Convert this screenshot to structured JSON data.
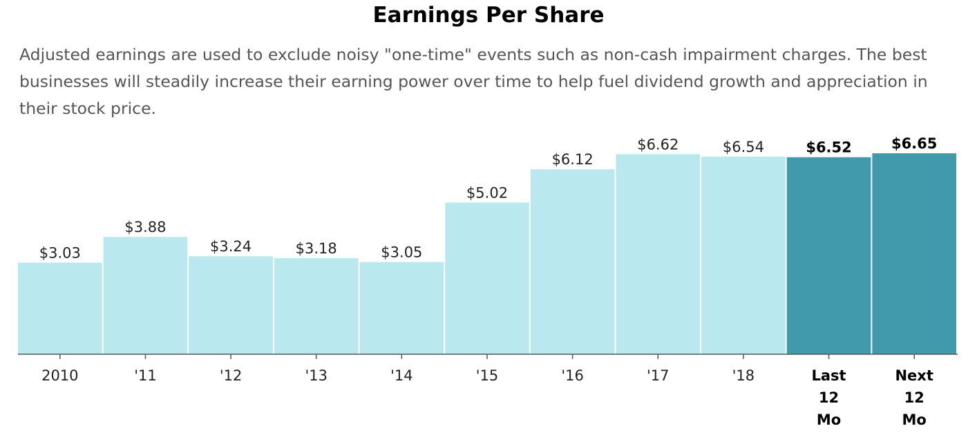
{
  "title": "Earnings Per Share",
  "subtitle": "Adjusted earnings are used to exclude noisy \"one-time\" events such as non-cash impairment charges. The best businesses will steadily increase their earning power over time to help fuel dividend growth and appreciation in their stock price.",
  "chart_data": {
    "type": "bar",
    "categories": [
      "2010",
      "'11",
      "'12",
      "'13",
      "'14",
      "'15",
      "'16",
      "'17",
      "'18",
      "Last 12 Mo",
      "Next 12 Mo"
    ],
    "values": [
      3.03,
      3.88,
      3.24,
      3.18,
      3.05,
      5.02,
      6.12,
      6.62,
      6.54,
      6.52,
      6.65
    ],
    "value_labels": [
      "$3.03",
      "$3.88",
      "$3.24",
      "$3.18",
      "$3.05",
      "$5.02",
      "$6.12",
      "$6.62",
      "$6.54",
      "$6.52",
      "$6.65"
    ],
    "tick_lines": [
      [
        "2010"
      ],
      [
        "'11"
      ],
      [
        "'12"
      ],
      [
        "'13"
      ],
      [
        "'14"
      ],
      [
        "'15"
      ],
      [
        "'16"
      ],
      [
        "'17"
      ],
      [
        "'18"
      ],
      [
        "Last",
        "12",
        "Mo"
      ],
      [
        "Next",
        "12",
        "Mo"
      ]
    ],
    "highlighted": [
      false,
      false,
      false,
      false,
      false,
      false,
      false,
      false,
      false,
      true,
      true
    ],
    "ylim": [
      0,
      6.65
    ],
    "xlabel": "",
    "ylabel": "",
    "grid": false,
    "colors": {
      "bar": "#b9e8ee",
      "bar_highlight": "#419aab",
      "axis": "#555555"
    }
  }
}
